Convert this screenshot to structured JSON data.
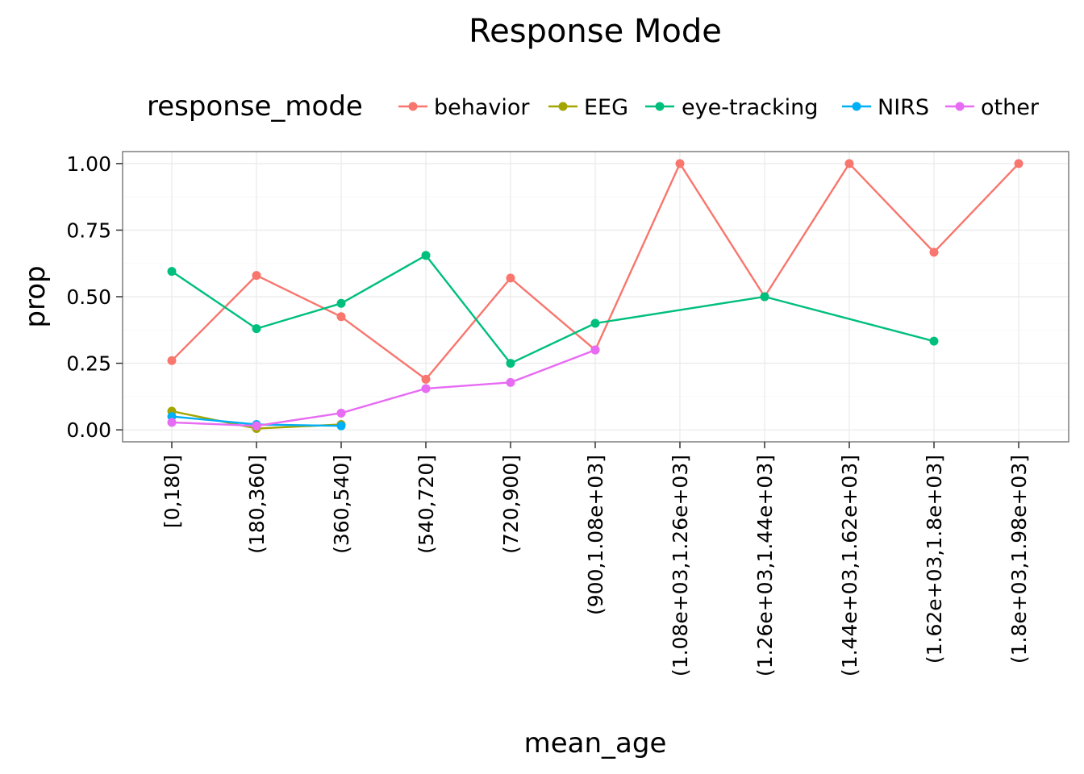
{
  "chart_data": {
    "type": "line",
    "title": "Response Mode",
    "xlabel": "mean_age",
    "ylabel": "prop",
    "ylim": [
      -0.045,
      1.045
    ],
    "yticks": [
      0.0,
      0.25,
      0.5,
      0.75,
      1.0
    ],
    "ytick_labels": [
      "0.00",
      "0.25",
      "0.50",
      "0.75",
      "1.00"
    ],
    "categories": [
      "[0,180]",
      "(180,360]",
      "(360,540]",
      "(540,720]",
      "(720,900]",
      "(900,1.08e+03]",
      "(1.08e+03,1.26e+03]",
      "(1.26e+03,1.44e+03]",
      "(1.44e+03,1.62e+03]",
      "(1.62e+03,1.8e+03]",
      "(1.8e+03,1.98e+03]"
    ],
    "legend": {
      "title": "response_mode",
      "position": "top"
    },
    "grid": true,
    "series": [
      {
        "name": "behavior",
        "color": "#F8766D",
        "values": [
          0.26,
          0.58,
          0.425,
          0.19,
          0.57,
          0.3,
          1.0,
          0.5,
          1.0,
          0.667,
          1.0
        ]
      },
      {
        "name": "EEG",
        "color": "#A3A500",
        "values": [
          0.07,
          0.005,
          0.02,
          null,
          null,
          null,
          null,
          null,
          null,
          null,
          null
        ]
      },
      {
        "name": "eye-tracking",
        "color": "#00BF7D",
        "values": [
          0.595,
          0.38,
          0.475,
          0.655,
          0.25,
          0.4,
          null,
          0.5,
          null,
          0.333,
          null
        ]
      },
      {
        "name": "NIRS",
        "color": "#00B0F6",
        "values": [
          0.05,
          0.02,
          0.015,
          null,
          null,
          null,
          null,
          null,
          null,
          null,
          null
        ]
      },
      {
        "name": "other",
        "color": "#E76BF3",
        "values": [
          0.028,
          0.015,
          0.063,
          0.155,
          0.178,
          0.3,
          null,
          null,
          null,
          null,
          null
        ]
      }
    ]
  }
}
